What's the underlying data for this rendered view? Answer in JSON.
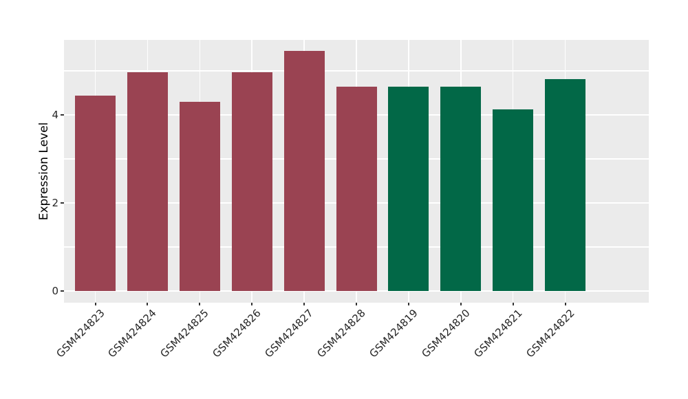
{
  "chart_data": {
    "type": "bar",
    "title": "",
    "xlabel": "",
    "ylabel": "Expression Level",
    "categories": [
      "GSM424823",
      "GSM424824",
      "GSM424825",
      "GSM424826",
      "GSM424827",
      "GSM424828",
      "GSM424819",
      "GSM424820",
      "GSM424821",
      "GSM424822"
    ],
    "values": [
      4.44,
      4.97,
      4.3,
      4.97,
      5.45,
      4.64,
      4.64,
      4.64,
      4.13,
      4.81
    ],
    "bar_colors": [
      "#9A4352",
      "#9A4352",
      "#9A4352",
      "#9A4352",
      "#9A4352",
      "#9A4352",
      "#026847",
      "#026847",
      "#026847",
      "#026847"
    ],
    "yticks": [
      0,
      2,
      4
    ],
    "ytick_labels": [
      "0",
      "2",
      "4"
    ],
    "minor_yticks": [
      1,
      3,
      5
    ],
    "ylim": [
      -0.27,
      5.7
    ],
    "grid": true,
    "legend": false,
    "panel_bg": "#EBEBEB",
    "figure_bg": "#FFFFFF",
    "grid_color": "#FFFFFF",
    "tick_color": "#333333",
    "text_color": "#262626"
  }
}
